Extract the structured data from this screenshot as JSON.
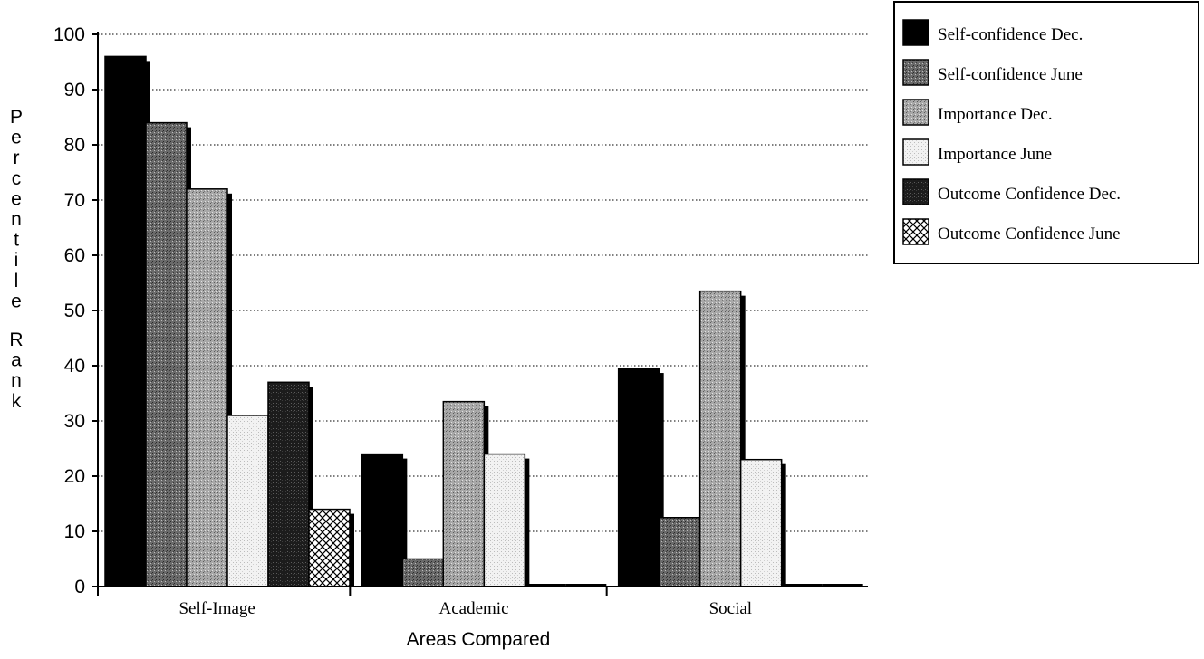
{
  "chart_data": {
    "type": "bar",
    "title": "",
    "xlabel": "Areas Compared",
    "ylabel": "Percentile Rank",
    "ylim": [
      0,
      100
    ],
    "yticks": [
      0,
      10,
      20,
      30,
      40,
      50,
      60,
      70,
      80,
      90,
      100
    ],
    "grid": true,
    "legend_position": "top-right",
    "categories": [
      "Self-Image",
      "Academic",
      "Social"
    ],
    "series": [
      {
        "name": "Self-confidence Dec.",
        "values": [
          96,
          24,
          39.5
        ],
        "fill": "solid-black",
        "color": "#000000"
      },
      {
        "name": "Self-confidence June",
        "values": [
          84,
          5,
          12.5
        ],
        "fill": "dark-gray-stipple",
        "color": "#5a5a5a"
      },
      {
        "name": "Importance Dec.",
        "values": [
          72,
          33.5,
          53.5
        ],
        "fill": "light-gray-stipple",
        "color": "#9a9a9a"
      },
      {
        "name": "Importance June",
        "values": [
          31,
          24,
          23
        ],
        "fill": "very-light-stipple",
        "color": "#e6e6e6"
      },
      {
        "name": "Outcome Confidence Dec.",
        "values": [
          37,
          0,
          0
        ],
        "fill": "black-stipple",
        "color": "#1e1e1e"
      },
      {
        "name": "Outcome Confidence June",
        "values": [
          14,
          0,
          0
        ],
        "fill": "crosshatch",
        "color": "#ffffff"
      }
    ]
  }
}
